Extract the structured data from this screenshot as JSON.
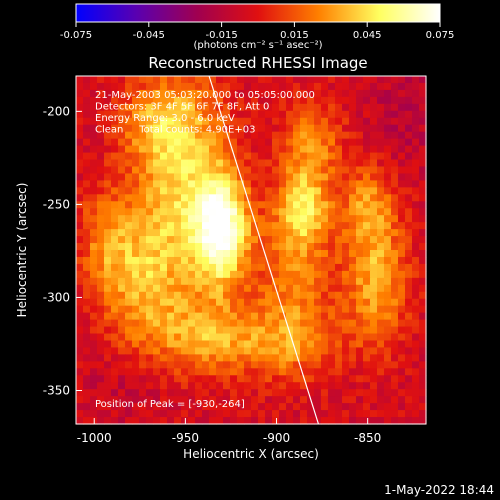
{
  "footer": {
    "date": "1-May-2022 18:44"
  },
  "chart_data": {
    "type": "heatmap",
    "title": "Reconstructed RHESSI Image",
    "xlabel": "Heliocentric X (arcsec)",
    "ylabel": "Heliocentric Y (arcsec)",
    "xlim": [
      -1010,
      -818
    ],
    "ylim": [
      -368,
      -181
    ],
    "x_ticks": [
      "-1000",
      "-950",
      "-900",
      "-850"
    ],
    "y_ticks": [
      "-200",
      "-250",
      "-300",
      "-350"
    ],
    "x_tick_values": [
      -1000,
      -950,
      -900,
      -850
    ],
    "y_tick_values": [
      -200,
      -250,
      -300,
      -350
    ],
    "colorbar": {
      "range": [
        -0.075,
        0.075
      ],
      "tick_labels": [
        "-0.075",
        "-0.045",
        "-0.015",
        "0.015",
        "0.045",
        "0.075"
      ],
      "tick_values": [
        -0.075,
        -0.045,
        -0.015,
        0.015,
        0.045,
        0.075
      ],
      "unit_label": "(photons cm⁻² s⁻¹ asec⁻²)",
      "colors": [
        "#0000ff",
        "#5a00b0",
        "#a00050",
        "#e01010",
        "#ff8000",
        "#ffff60",
        "#ffffff"
      ]
    },
    "annotations": [
      "21-May-2003 05:03:20.000 to 05:05:00.000",
      "Detectors: 3F 4F 5F 6F 7F 8F, Att 0",
      "Energy Range: 3.0 - 6.0 keV",
      "Clean     Total counts: 4.90E+03"
    ],
    "peak_label": "Position of Peak = [-930,-264]",
    "peak": [
      -930,
      -264
    ],
    "limb_line": [
      [
        -937,
        -181
      ],
      [
        -877,
        -368
      ]
    ],
    "sources": [
      {
        "x": -930,
        "y": -264,
        "amp": 0.075,
        "sx": 10,
        "sy": 20
      },
      {
        "x": -950,
        "y": -240,
        "amp": 0.045,
        "sx": 18,
        "sy": 40
      },
      {
        "x": -975,
        "y": -290,
        "amp": 0.035,
        "sx": 15,
        "sy": 30
      },
      {
        "x": -995,
        "y": -270,
        "amp": 0.025,
        "sx": 10,
        "sy": 20
      },
      {
        "x": -885,
        "y": -250,
        "amp": 0.045,
        "sx": 10,
        "sy": 15
      },
      {
        "x": -890,
        "y": -290,
        "amp": 0.03,
        "sx": 15,
        "sy": 30
      },
      {
        "x": -880,
        "y": -215,
        "amp": 0.03,
        "sx": 12,
        "sy": 15
      },
      {
        "x": -845,
        "y": -290,
        "amp": 0.04,
        "sx": 12,
        "sy": 25
      },
      {
        "x": -850,
        "y": -250,
        "amp": 0.03,
        "sx": 10,
        "sy": 15
      },
      {
        "x": -900,
        "y": -325,
        "amp": 0.025,
        "sx": 25,
        "sy": 12
      },
      {
        "x": -940,
        "y": -320,
        "amp": 0.03,
        "sx": 20,
        "sy": 15
      },
      {
        "x": -965,
        "y": -205,
        "amp": 0.03,
        "sx": 15,
        "sy": 15
      },
      {
        "x": -980,
        "y": -345,
        "amp": -0.01,
        "sx": 15,
        "sy": 15
      },
      {
        "x": -830,
        "y": -200,
        "amp": -0.01,
        "sx": 15,
        "sy": 20
      }
    ]
  }
}
